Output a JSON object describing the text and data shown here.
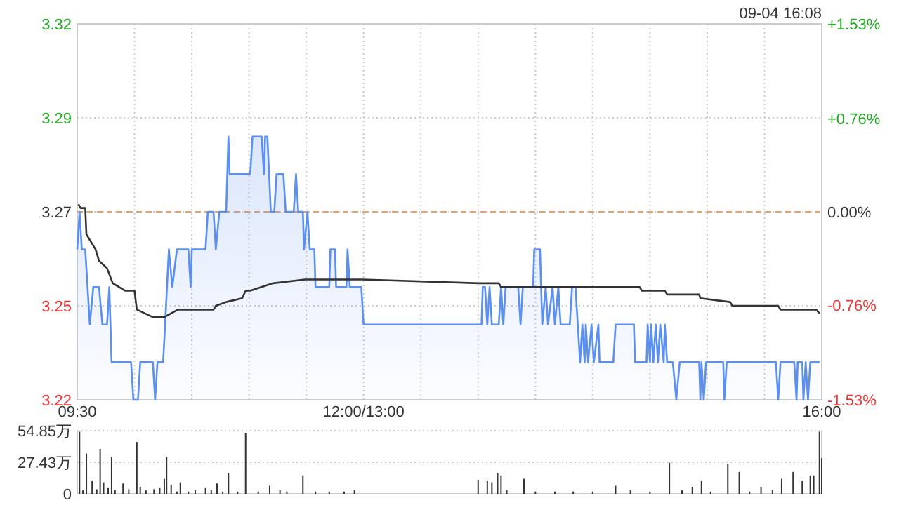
{
  "chart_data": [
    {
      "type": "area",
      "annotations": [
        "09-04 16:08"
      ],
      "xlim": [
        9.5,
        16
      ],
      "xticks": [
        {
          "value": 9.5,
          "label": "09:30"
        },
        {
          "value": 10,
          "label": null
        },
        {
          "value": 10.5,
          "label": null
        },
        {
          "value": 11,
          "label": null
        },
        {
          "value": 11.5,
          "label": null
        },
        {
          "value": 12,
          "label": "12:00/13:00"
        },
        {
          "value": 12.5,
          "label": null
        },
        {
          "value": 13,
          "label": null
        },
        {
          "value": 13.5,
          "label": null
        },
        {
          "value": 14,
          "label": null
        },
        {
          "value": 14.5,
          "label": null
        },
        {
          "value": 15,
          "label": null
        },
        {
          "value": 15.5,
          "label": null
        },
        {
          "value": 16,
          "label": "16:00"
        }
      ],
      "ylim": [
        3.22,
        3.32
      ],
      "yticks": [
        3.22,
        {
          "value": 3.245,
          "label": "3.25"
        },
        3.27,
        {
          "value": 3.295,
          "label": "3.29"
        },
        3.32
      ],
      "y2lim": [
        -1.53,
        1.53
      ],
      "y2ticks": [
        {
          "value": -1.53,
          "label": "-1.53%"
        },
        {
          "value": -0.76,
          "label": "-0.76%"
        },
        {
          "value": 0,
          "label": "0.00%"
        },
        {
          "value": 0.76,
          "label": "+0.76%"
        },
        {
          "value": 1.53,
          "label": "+1.53%"
        }
      ],
      "grid": true,
      "ref_lines": [
        {
          "axis": "y",
          "value": 3.27,
          "color": "#f0a060",
          "line_style": "dashed"
        }
      ],
      "series": [
        {
          "type": "area",
          "color": "#5b8ff0",
          "x": [
            9.5,
            9.52,
            9.54,
            9.57,
            9.59,
            9.61,
            9.64,
            9.69,
            9.72,
            9.76,
            9.78,
            9.8,
            9.97,
            9.99,
            10.03,
            10.05,
            10.16,
            10.18,
            10.2,
            10.25,
            10.3,
            10.33,
            10.37,
            10.47,
            10.49,
            10.5,
            10.62,
            10.64,
            10.69,
            10.71,
            10.74,
            10.8,
            10.82,
            10.83,
            11.01,
            11.03,
            11.11,
            11.13,
            11.14,
            11.16,
            11.19,
            11.22,
            11.24,
            11.3,
            11.32,
            11.39,
            11.41,
            11.43,
            11.47,
            11.48,
            11.51,
            11.53,
            11.57,
            11.58,
            11.7,
            11.71,
            11.75,
            11.76,
            11.85,
            11.86,
            11.88,
            11.98,
            12.0,
            13.03,
            13.04,
            13.06,
            13.08,
            13.1,
            13.12,
            13.18,
            13.2,
            13.22,
            13.24,
            13.35,
            13.37,
            13.39,
            13.48,
            13.49,
            13.54,
            13.56,
            13.59,
            13.61,
            13.65,
            13.67,
            13.7,
            13.72,
            13.8,
            13.82,
            13.85,
            13.87,
            13.89,
            13.91,
            13.93,
            13.94,
            13.96,
            13.99,
            14.01,
            14.05,
            14.06,
            14.18,
            14.2,
            14.36,
            14.37,
            14.47,
            14.48,
            14.5,
            14.51,
            14.53,
            14.55,
            14.57,
            14.59,
            14.62,
            14.63,
            14.65,
            14.7,
            14.73,
            14.76,
            14.93,
            14.94,
            14.95,
            14.97,
            14.99,
            15.14,
            15.15,
            15.17,
            15.6,
            15.62,
            15.64,
            15.76,
            15.78,
            15.79,
            15.83,
            15.84,
            15.86,
            15.88,
            15.9,
            15.98
          ],
          "values": [
            3.26,
            3.27,
            3.26,
            3.26,
            3.25,
            3.24,
            3.25,
            3.25,
            3.24,
            3.24,
            3.25,
            3.23,
            3.23,
            3.22,
            3.22,
            3.23,
            3.23,
            3.22,
            3.23,
            3.23,
            3.26,
            3.25,
            3.26,
            3.26,
            3.25,
            3.26,
            3.26,
            3.27,
            3.27,
            3.26,
            3.27,
            3.27,
            3.29,
            3.28,
            3.28,
            3.29,
            3.29,
            3.28,
            3.29,
            3.29,
            3.27,
            3.27,
            3.28,
            3.28,
            3.27,
            3.27,
            3.28,
            3.27,
            3.27,
            3.26,
            3.27,
            3.26,
            3.26,
            3.25,
            3.25,
            3.26,
            3.26,
            3.25,
            3.25,
            3.26,
            3.25,
            3.25,
            3.24,
            3.24,
            3.25,
            3.25,
            3.24,
            3.25,
            3.24,
            3.24,
            3.25,
            3.24,
            3.25,
            3.25,
            3.24,
            3.25,
            3.25,
            3.26,
            3.26,
            3.24,
            3.25,
            3.24,
            3.25,
            3.24,
            3.25,
            3.24,
            3.24,
            3.25,
            3.25,
            3.24,
            3.23,
            3.24,
            3.23,
            3.24,
            3.23,
            3.24,
            3.23,
            3.24,
            3.23,
            3.23,
            3.24,
            3.24,
            3.23,
            3.23,
            3.24,
            3.23,
            3.24,
            3.23,
            3.24,
            3.23,
            3.24,
            3.23,
            3.24,
            3.23,
            3.23,
            3.22,
            3.23,
            3.23,
            3.22,
            3.23,
            3.22,
            3.23,
            3.23,
            3.22,
            3.23,
            3.23,
            3.22,
            3.23,
            3.23,
            3.22,
            3.23,
            3.23,
            3.22,
            3.23,
            3.22,
            3.23,
            3.23
          ]
        },
        {
          "type": "line",
          "color": "#333333",
          "x": [
            9.51,
            9.53,
            9.57,
            9.58,
            9.62,
            9.66,
            9.69,
            9.76,
            9.81,
            9.92,
            10.0,
            10.02,
            10.16,
            10.26,
            10.38,
            10.69,
            10.71,
            10.8,
            10.94,
            10.97,
            11.01,
            11.21,
            11.49,
            11.99,
            13.01,
            13.18,
            13.2,
            14.41,
            14.43,
            14.63,
            14.65,
            14.93,
            14.94,
            15.2,
            15.22,
            15.62,
            15.64,
            15.81,
            15.83,
            15.95,
            15.98
          ],
          "values": [
            3.272,
            3.271,
            3.271,
            3.264,
            3.262,
            3.26,
            3.257,
            3.255,
            3.251,
            3.249,
            3.249,
            3.244,
            3.242,
            3.242,
            3.244,
            3.244,
            3.245,
            3.246,
            3.247,
            3.249,
            3.249,
            3.251,
            3.252,
            3.252,
            3.251,
            3.251,
            3.25,
            3.25,
            3.249,
            3.249,
            3.248,
            3.248,
            3.247,
            3.246,
            3.245,
            3.245,
            3.244,
            3.244,
            3.244,
            3.244,
            3.243
          ]
        }
      ]
    },
    {
      "type": "bar",
      "color": "#333333",
      "xlim": [
        9.5,
        16
      ],
      "ylim": [
        0,
        54.85
      ],
      "yticks": [
        0,
        {
          "value": 27.43,
          "label": "27.43万"
        },
        {
          "value": 54.85,
          "label": "54.85万"
        }
      ],
      "grid": "y",
      "tick_labels": "y",
      "x": [
        9.52,
        9.55,
        9.58,
        9.63,
        9.67,
        9.7,
        9.73,
        9.77,
        9.8,
        9.83,
        9.9,
        9.95,
        10.02,
        10.05,
        10.1,
        10.17,
        10.22,
        10.26,
        10.28,
        10.32,
        10.37,
        10.4,
        10.47,
        10.53,
        10.62,
        10.67,
        10.72,
        10.77,
        10.82,
        10.9,
        10.97,
        11.08,
        11.18,
        11.27,
        11.33,
        11.47,
        11.58,
        11.7,
        11.83,
        11.92,
        13.0,
        13.08,
        13.12,
        13.17,
        13.2,
        13.25,
        13.4,
        13.5,
        13.67,
        13.83,
        14.0,
        14.2,
        14.33,
        14.5,
        14.67,
        14.78,
        14.87,
        14.95,
        15.03,
        15.18,
        15.28,
        15.37,
        15.47,
        15.57,
        15.65,
        15.75,
        15.83,
        15.9,
        15.93,
        15.98,
        16.0
      ],
      "values": [
        54,
        3,
        35,
        11,
        4,
        39,
        10,
        5,
        32,
        3,
        9,
        4,
        45,
        6,
        3,
        4,
        5,
        13,
        32,
        8,
        2,
        10,
        2,
        3,
        5,
        3,
        9,
        2,
        18,
        2,
        53,
        2,
        7,
        3,
        2,
        16,
        2,
        2,
        2,
        3,
        12,
        11,
        10,
        18,
        16,
        3,
        13,
        2,
        2,
        2,
        2,
        7,
        3,
        2,
        27,
        3,
        6,
        11,
        2,
        26,
        19,
        2,
        6,
        3,
        13,
        19,
        11,
        16,
        16,
        54,
        31
      ]
    }
  ]
}
